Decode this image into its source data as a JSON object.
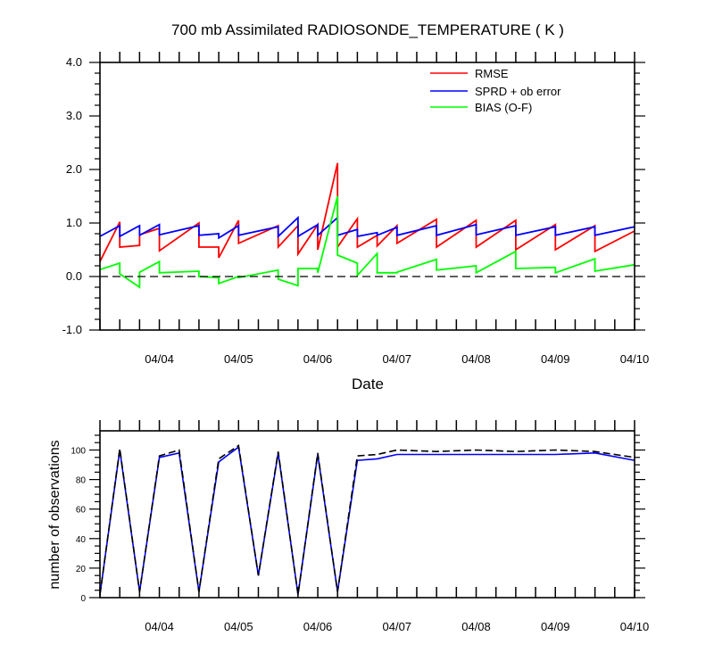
{
  "chart_data": [
    {
      "type": "line",
      "title": "700 mb Assimilated RADIOSONDE_TEMPERATURE ( K )",
      "xlabel": "Date",
      "ylabel": "",
      "xlim": [
        0,
        6.75
      ],
      "ylim": [
        -1.0,
        4.0
      ],
      "yticks": [
        -1.0,
        0.0,
        1.0,
        2.0,
        3.0,
        4.0
      ],
      "ytick_labels": [
        "-1.0",
        "0.0",
        "1.0",
        "2.0",
        "3.0",
        "4.0"
      ],
      "xticks": [
        0.75,
        1.75,
        2.75,
        3.75,
        4.75,
        5.75,
        6.75
      ],
      "xtick_labels": [
        "04/04",
        "04/05",
        "04/06",
        "04/07",
        "04/08",
        "04/09",
        "04/10"
      ],
      "reference_line": 0.0,
      "legend": [
        "RMSE",
        "SPRD + ob error",
        "BIAS (O-F)"
      ],
      "colors": {
        "RMSE": "#ff0000",
        "SPRD + ob error": "#0000ff",
        "BIAS (O-F)": "#00ff00",
        "reference": "#000000"
      },
      "series": [
        {
          "name": "RMSE",
          "x": [
            0,
            0.25,
            0.25,
            0.5,
            0.5,
            0.75,
            0.75,
            1.25,
            1.25,
            1.5,
            1.5,
            1.75,
            1.75,
            2.25,
            2.25,
            2.5,
            2.5,
            2.75,
            2.75,
            3.0,
            3.0,
            3.25,
            3.25,
            3.5,
            3.5,
            3.75,
            3.75,
            4.25,
            4.25,
            4.75,
            4.75,
            5.25,
            5.25,
            5.75,
            5.75,
            6.25,
            6.25,
            6.75
          ],
          "y": [
            0.28,
            1.02,
            0.55,
            0.58,
            0.78,
            0.9,
            0.48,
            1.0,
            0.55,
            0.55,
            0.35,
            1.05,
            0.62,
            0.95,
            0.55,
            0.95,
            0.42,
            0.97,
            0.5,
            2.12,
            0.55,
            1.08,
            0.55,
            0.77,
            0.57,
            0.95,
            0.62,
            1.07,
            0.55,
            1.05,
            0.55,
            1.05,
            0.5,
            0.97,
            0.5,
            0.95,
            0.47,
            0.85
          ]
        },
        {
          "name": "SPRD + ob error",
          "x": [
            0,
            0.25,
            0.25,
            0.5,
            0.5,
            0.75,
            0.75,
            1.25,
            1.25,
            1.5,
            1.5,
            1.75,
            1.75,
            2.25,
            2.25,
            2.5,
            2.5,
            2.75,
            2.75,
            3.0,
            3.0,
            3.25,
            3.25,
            3.5,
            3.5,
            3.75,
            3.75,
            4.25,
            4.25,
            4.75,
            4.75,
            5.25,
            5.25,
            5.75,
            5.75,
            6.25,
            6.25,
            6.75
          ],
          "y": [
            0.75,
            0.95,
            0.75,
            0.95,
            0.77,
            0.97,
            0.78,
            0.95,
            0.77,
            0.8,
            0.72,
            0.95,
            0.77,
            0.93,
            0.75,
            1.1,
            0.75,
            0.97,
            0.77,
            1.1,
            0.77,
            0.88,
            0.75,
            0.82,
            0.77,
            0.92,
            0.77,
            0.95,
            0.77,
            0.97,
            0.78,
            0.95,
            0.77,
            0.93,
            0.77,
            0.93,
            0.77,
            0.93
          ]
        },
        {
          "name": "BIAS (O-F)",
          "x": [
            0,
            0.25,
            0.25,
            0.5,
            0.5,
            0.75,
            0.75,
            1.25,
            1.25,
            1.5,
            1.5,
            1.75,
            1.75,
            2.25,
            2.25,
            2.5,
            2.5,
            2.75,
            2.75,
            3.0,
            3.0,
            3.25,
            3.25,
            3.5,
            3.5,
            3.75,
            3.75,
            4.25,
            4.25,
            4.75,
            4.75,
            5.25,
            5.25,
            5.75,
            5.75,
            6.25,
            6.25,
            6.75
          ],
          "y": [
            0.13,
            0.25,
            0.05,
            -0.2,
            0.08,
            0.28,
            0.07,
            0.1,
            0.0,
            -0.02,
            -0.13,
            0.0,
            -0.02,
            0.12,
            -0.05,
            -0.17,
            0.15,
            0.15,
            0.07,
            1.5,
            0.4,
            0.25,
            0.02,
            0.43,
            0.07,
            0.07,
            0.08,
            0.32,
            0.12,
            0.2,
            0.07,
            0.47,
            0.15,
            0.17,
            0.07,
            0.33,
            0.1,
            0.22
          ]
        }
      ]
    },
    {
      "type": "line",
      "title": "",
      "xlabel": "",
      "ylabel": "number of observations",
      "xlim": [
        0,
        6.75
      ],
      "ylim": [
        0,
        113
      ],
      "yticks": [
        0,
        20,
        40,
        60,
        80,
        100
      ],
      "ytick_labels": [
        "0",
        "20",
        "40",
        "60",
        "80",
        "100"
      ],
      "xticks": [
        0.75,
        1.75,
        2.75,
        3.75,
        4.75,
        5.75,
        6.75
      ],
      "xtick_labels": [
        "04/04",
        "04/05",
        "04/06",
        "04/07",
        "04/08",
        "04/09",
        "04/10"
      ],
      "colors": {
        "used": "#0000ff",
        "possible": "#000000"
      },
      "series": [
        {
          "name": "used",
          "x": [
            0,
            0.25,
            0.5,
            0.75,
            1.0,
            1.25,
            1.5,
            1.75,
            2.0,
            2.25,
            2.5,
            2.75,
            3.0,
            3.25,
            3.5,
            3.75,
            4.25,
            4.75,
            5.75,
            6.25,
            6.75
          ],
          "y": [
            2,
            100,
            4,
            95,
            98,
            4,
            92,
            102,
            15,
            98,
            2,
            97,
            4,
            93,
            94,
            97,
            97,
            97,
            97,
            98,
            93
          ]
        },
        {
          "name": "possible",
          "x": [
            0,
            0.25,
            0.5,
            0.75,
            1.0,
            1.25,
            1.5,
            1.75,
            2.0,
            2.25,
            2.5,
            2.75,
            3.0,
            3.25,
            3.5,
            3.75,
            4.25,
            4.75,
            5.25,
            5.75,
            6.25,
            6.75
          ],
          "y": [
            2,
            101,
            4,
            96,
            100,
            4,
            94,
            103,
            15,
            99,
            2,
            98,
            4,
            96,
            97,
            100,
            99,
            100,
            99,
            100,
            99,
            95
          ]
        }
      ]
    }
  ]
}
